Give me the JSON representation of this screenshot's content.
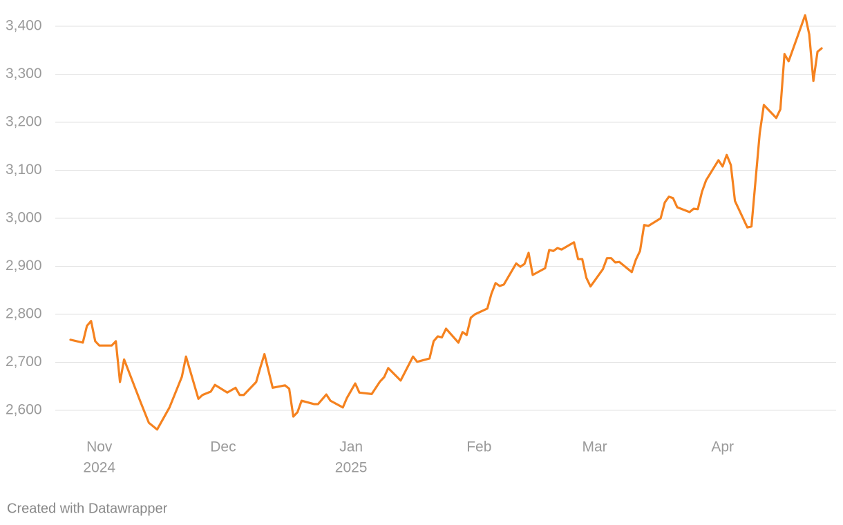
{
  "chart_data": {
    "type": "line",
    "footer": "Created with Datawrapper",
    "color": "#f5821f",
    "grid": true,
    "x": [
      -7,
      -4,
      -3,
      -2,
      -1,
      0,
      2,
      3,
      4,
      5,
      6,
      10,
      12,
      14,
      17,
      20,
      21,
      24,
      25,
      27,
      28,
      31,
      33,
      34,
      35,
      38,
      39,
      40,
      42,
      45,
      46,
      47,
      48,
      49,
      52,
      53,
      55,
      56,
      59,
      60,
      62,
      63,
      66,
      68,
      69,
      70,
      73,
      76,
      77,
      80,
      81,
      82,
      83,
      84,
      87,
      88,
      89,
      90,
      91,
      94,
      95,
      96,
      97,
      98,
      101,
      102,
      103,
      104,
      105,
      108,
      109,
      110,
      111,
      112,
      115,
      116,
      117,
      118,
      119,
      122,
      123,
      124,
      125,
      126,
      129,
      130,
      131,
      132,
      133,
      136,
      137,
      138,
      139,
      140,
      143,
      144,
      145,
      146,
      147,
      150,
      151,
      152,
      153,
      154,
      157,
      158,
      160,
      161,
      164,
      165,
      166,
      167,
      171,
      172,
      173,
      174,
      175
    ],
    "values": [
      2747,
      2741,
      2776,
      2786,
      2744,
      2735,
      2735,
      2735,
      2744,
      2659,
      2706,
      2617,
      2574,
      2560,
      2606,
      2670,
      2712,
      2624,
      2632,
      2639,
      2653,
      2637,
      2647,
      2632,
      2632,
      2659,
      2689,
      2717,
      2647,
      2652,
      2645,
      2587,
      2596,
      2620,
      2613,
      2613,
      2633,
      2620,
      2606,
      2626,
      2656,
      2637,
      2634,
      2660,
      2669,
      2688,
      2662,
      2712,
      2701,
      2708,
      2744,
      2754,
      2752,
      2770,
      2741,
      2763,
      2757,
      2793,
      2800,
      2812,
      2843,
      2865,
      2859,
      2862,
      2906,
      2899,
      2905,
      2928,
      2882,
      2896,
      2934,
      2932,
      2938,
      2935,
      2950,
      2915,
      2915,
      2876,
      2858,
      2894,
      2917,
      2917,
      2908,
      2909,
      2888,
      2914,
      2932,
      2986,
      2984,
      3000,
      3033,
      3045,
      3042,
      3023,
      3013,
      3020,
      3019,
      3055,
      3079,
      3121,
      3108,
      3132,
      3111,
      3036,
      2981,
      2983,
      3177,
      3236,
      3209,
      3227,
      3342,
      3327,
      3423,
      3383,
      3286,
      3347,
      3354
    ],
    "xlim": [
      -9,
      178
    ],
    "xticks": [
      {
        "value": 0,
        "label": "Nov",
        "sublabel": "2024"
      },
      {
        "value": 30,
        "label": "Dec"
      },
      {
        "value": 61,
        "label": "Jan",
        "sublabel": "2025"
      },
      {
        "value": 92,
        "label": "Feb"
      },
      {
        "value": 120,
        "label": "Mar"
      },
      {
        "value": 151,
        "label": "Apr"
      }
    ],
    "ylim": [
      2550,
      3450
    ],
    "yticks": [
      {
        "value": 2600,
        "label": "2,600"
      },
      {
        "value": 2700,
        "label": "2,700"
      },
      {
        "value": 2800,
        "label": "2,800"
      },
      {
        "value": 2900,
        "label": "2,900"
      },
      {
        "value": 3000,
        "label": "3,000"
      },
      {
        "value": 3100,
        "label": "3,100"
      },
      {
        "value": 3200,
        "label": "3,200"
      },
      {
        "value": 3300,
        "label": "3,300"
      },
      {
        "value": 3400,
        "label": "3,400"
      }
    ]
  }
}
